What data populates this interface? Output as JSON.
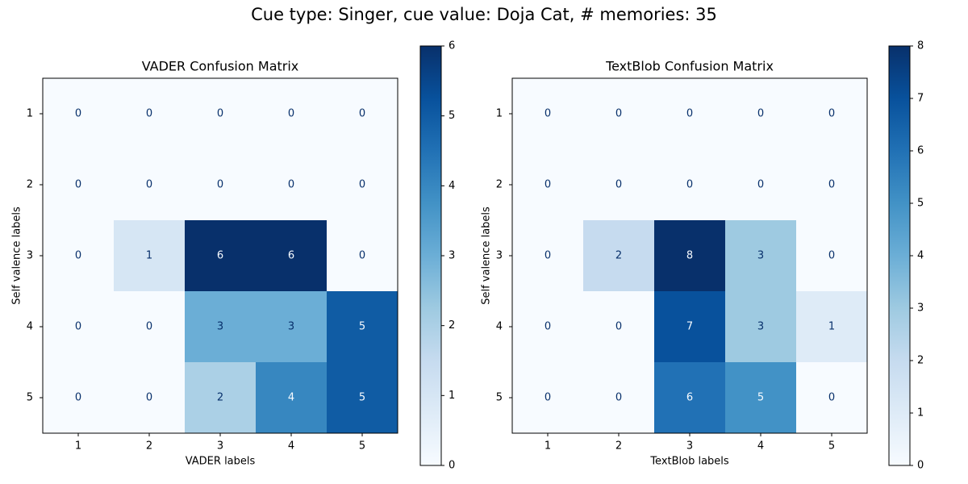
{
  "suptitle": "Cue type: Singer, cue value: Doja Cat, # memories: 35",
  "colormap": {
    "low": "#f7fbff",
    "high": "#08306b",
    "text_dark": "#08306b",
    "text_light": "#f7fbff"
  },
  "chart_data": [
    {
      "type": "heatmap",
      "title": "VADER Confusion Matrix",
      "xlabel": "VADER labels",
      "ylabel": "Self valence labels",
      "x_categories": [
        "1",
        "2",
        "3",
        "4",
        "5"
      ],
      "y_categories": [
        "1",
        "2",
        "3",
        "4",
        "5"
      ],
      "matrix": [
        [
          0,
          0,
          0,
          0,
          0
        ],
        [
          0,
          0,
          0,
          0,
          0
        ],
        [
          0,
          1,
          6,
          6,
          0
        ],
        [
          0,
          0,
          3,
          3,
          5
        ],
        [
          0,
          0,
          2,
          4,
          5
        ]
      ],
      "colorbar": {
        "min": 0,
        "max": 6,
        "ticks": [
          "0",
          "1",
          "2",
          "3",
          "4",
          "5",
          "6"
        ]
      },
      "grid": false,
      "colorbar_placement": "right"
    },
    {
      "type": "heatmap",
      "title": "TextBlob Confusion Matrix",
      "xlabel": "TextBlob labels",
      "ylabel": "Self valence labels",
      "x_categories": [
        "1",
        "2",
        "3",
        "4",
        "5"
      ],
      "y_categories": [
        "1",
        "2",
        "3",
        "4",
        "5"
      ],
      "matrix": [
        [
          0,
          0,
          0,
          0,
          0
        ],
        [
          0,
          0,
          0,
          0,
          0
        ],
        [
          0,
          2,
          8,
          3,
          0
        ],
        [
          0,
          0,
          7,
          3,
          1
        ],
        [
          0,
          0,
          6,
          5,
          0
        ]
      ],
      "colorbar": {
        "min": 0,
        "max": 8,
        "ticks": [
          "0",
          "1",
          "2",
          "3",
          "4",
          "5",
          "6",
          "7",
          "8"
        ]
      },
      "grid": false,
      "colorbar_placement": "right"
    }
  ]
}
